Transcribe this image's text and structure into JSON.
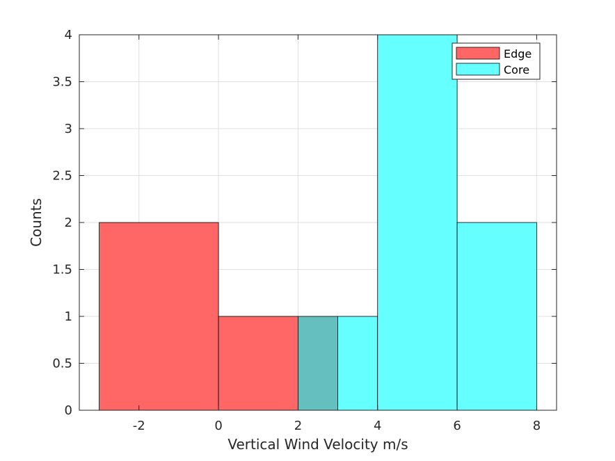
{
  "chart_data": {
    "type": "bar",
    "title": "",
    "xlabel": "Vertical Wind Velocity m/s",
    "ylabel": "Counts",
    "xlim": [
      -3.5,
      8.5
    ],
    "ylim": [
      0,
      4
    ],
    "xticks": [
      -2,
      0,
      2,
      4,
      6,
      8
    ],
    "xtick_labels": [
      "-2",
      "0",
      "2",
      "4",
      "6",
      "8"
    ],
    "yticks": [
      0,
      0.5,
      1,
      1.5,
      2,
      2.5,
      3,
      3.5,
      4
    ],
    "ytick_labels": [
      "0",
      "0.5",
      "1",
      "1.5",
      "2",
      "2.5",
      "3",
      "3.5",
      "4"
    ],
    "grid": true,
    "legend_position": "top-right",
    "series": [
      {
        "name": "Edge",
        "color": "#ff6666",
        "bins": [
          {
            "x0": -3,
            "x1": 0,
            "count": 2
          },
          {
            "x0": 0,
            "x1": 2,
            "count": 1
          },
          {
            "x0": 2,
            "x1": 3,
            "count": 1
          }
        ]
      },
      {
        "name": "Core",
        "color": "#66ffff",
        "bins": [
          {
            "x0": 2,
            "x1": 4,
            "count": 1
          },
          {
            "x0": 4,
            "x1": 6,
            "count": 4
          },
          {
            "x0": 6,
            "x1": 8,
            "count": 2
          }
        ]
      }
    ],
    "overlap_color": "#66bfbf"
  }
}
